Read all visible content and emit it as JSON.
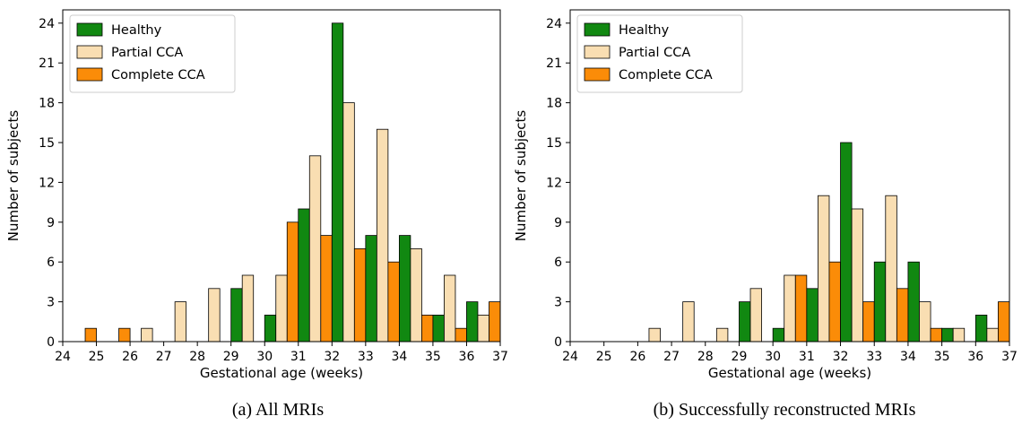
{
  "colors": {
    "Healthy": "#118811",
    "Partial CCA": "#f9deb2",
    "Complete CCA": "#fb8c08"
  },
  "chart_data": [
    {
      "type": "bar",
      "caption": "(a) All MRIs",
      "xlabel": "Gestational age (weeks)",
      "ylabel": "Number of subjects",
      "xlim": [
        24,
        37
      ],
      "ylim": [
        0,
        25
      ],
      "x_ticks": [
        "24",
        "25",
        "26",
        "27",
        "28",
        "29",
        "30",
        "31",
        "32",
        "33",
        "34",
        "35",
        "36",
        "37"
      ],
      "y_ticks": [
        "0",
        "3",
        "6",
        "9",
        "12",
        "15",
        "18",
        "21",
        "24"
      ],
      "legend_position": "top-left",
      "categories": [
        "24.5",
        "25.5",
        "26.5",
        "27.5",
        "28.5",
        "29.5",
        "30.5",
        "31.5",
        "32.5",
        "33.5",
        "34.5",
        "35.5",
        "36.5"
      ],
      "series": [
        {
          "name": "Healthy",
          "values": [
            0,
            0,
            0,
            0,
            0,
            4,
            2,
            10,
            24,
            8,
            8,
            2,
            3
          ]
        },
        {
          "name": "Partial CCA",
          "values": [
            0,
            0,
            1,
            3,
            4,
            5,
            5,
            14,
            18,
            16,
            7,
            5,
            2
          ]
        },
        {
          "name": "Complete CCA",
          "values": [
            1,
            1,
            0,
            0,
            0,
            0,
            9,
            8,
            7,
            6,
            2,
            1,
            3
          ]
        }
      ]
    },
    {
      "type": "bar",
      "caption": "(b) Successfully reconstructed MRIs",
      "xlabel": "Gestational age (weeks)",
      "ylabel": "Number of subjects",
      "xlim": [
        24,
        37
      ],
      "ylim": [
        0,
        25
      ],
      "x_ticks": [
        "24",
        "25",
        "26",
        "27",
        "28",
        "29",
        "30",
        "31",
        "32",
        "33",
        "34",
        "35",
        "36",
        "37"
      ],
      "y_ticks": [
        "0",
        "3",
        "6",
        "9",
        "12",
        "15",
        "18",
        "21",
        "24"
      ],
      "legend_position": "top-left",
      "categories": [
        "24.5",
        "25.5",
        "26.5",
        "27.5",
        "28.5",
        "29.5",
        "30.5",
        "31.5",
        "32.5",
        "33.5",
        "34.5",
        "35.5",
        "36.5"
      ],
      "series": [
        {
          "name": "Healthy",
          "values": [
            0,
            0,
            0,
            0,
            0,
            3,
            1,
            4,
            15,
            6,
            6,
            1,
            2
          ]
        },
        {
          "name": "Partial CCA",
          "values": [
            0,
            0,
            1,
            3,
            1,
            4,
            5,
            11,
            10,
            11,
            3,
            1,
            1
          ]
        },
        {
          "name": "Complete CCA",
          "values": [
            0,
            0,
            0,
            0,
            0,
            0,
            5,
            6,
            3,
            4,
            1,
            0,
            3
          ]
        }
      ]
    }
  ]
}
